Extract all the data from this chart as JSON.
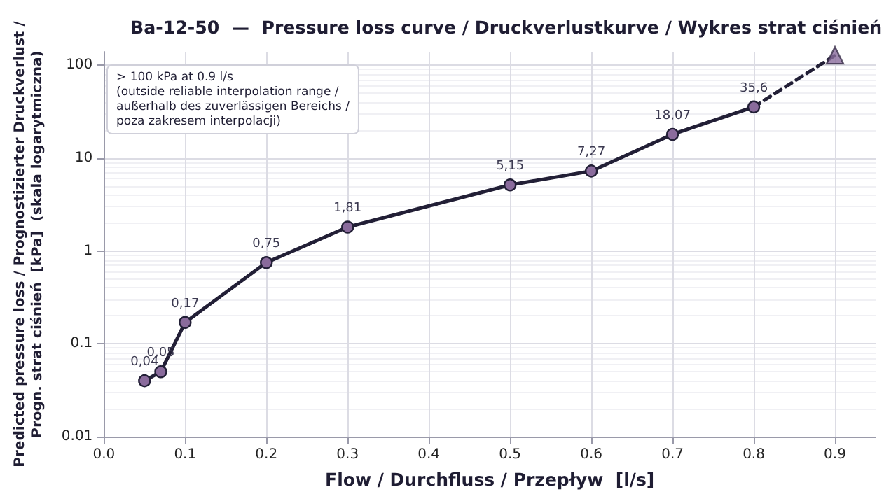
{
  "chart_data": {
    "type": "line",
    "title": "Ba-12-50  —  Pressure loss curve / Druckverlustkurve / Wykres strat ciśnień",
    "xlabel": "Flow / Durchfluss / Przepływ  [l/s]",
    "ylabel": "Predicted pressure loss / Prognostizierter Druckverlust /\nProgn. strat ciśnień  [kPa]  (skala logarytmiczna)",
    "annotations": [
      "> 100 kPa at 0.9 l/s\n(outside reliable interpolation range /\naußerhalb des zuverlässigen Bereichs /\npoza zakresem interpolacji)"
    ],
    "series": [
      {
        "color": "#221f36",
        "marker": "circle",
        "line_style": "solid",
        "x": [
          0.05,
          0.07,
          0.1,
          0.2,
          0.3,
          0.5,
          0.6,
          0.7,
          0.8
        ],
        "values": [
          0.04,
          0.05,
          0.17,
          0.75,
          1.81,
          5.15,
          7.27,
          18.07,
          35.6
        ],
        "value_labels": [
          "0,04",
          "0,05",
          "0,17",
          "0,75",
          "1,81",
          "5,15",
          "7,27",
          "18,07",
          "35,6"
        ]
      },
      {
        "color": "#221f36",
        "marker": "none",
        "line_style": "dashed",
        "x": [
          0.8,
          0.9
        ],
        "values": [
          35.6,
          128
        ]
      },
      {
        "type": "scatter",
        "color": "#8a6b9c",
        "marker": "triangle",
        "x": [
          0.9
        ],
        "values": [
          128
        ]
      }
    ],
    "xlim": [
      0,
      0.95
    ],
    "xticks": [
      {
        "value": 0,
        "label": "0.0"
      },
      0.1,
      0.2,
      0.3,
      0.4,
      0.5,
      0.6,
      0.7,
      0.8,
      0.9
    ],
    "ylim": [
      0.01,
      140
    ],
    "yticks": [
      0.01,
      0.1,
      1,
      10,
      100
    ],
    "log": "y",
    "grid": true
  }
}
